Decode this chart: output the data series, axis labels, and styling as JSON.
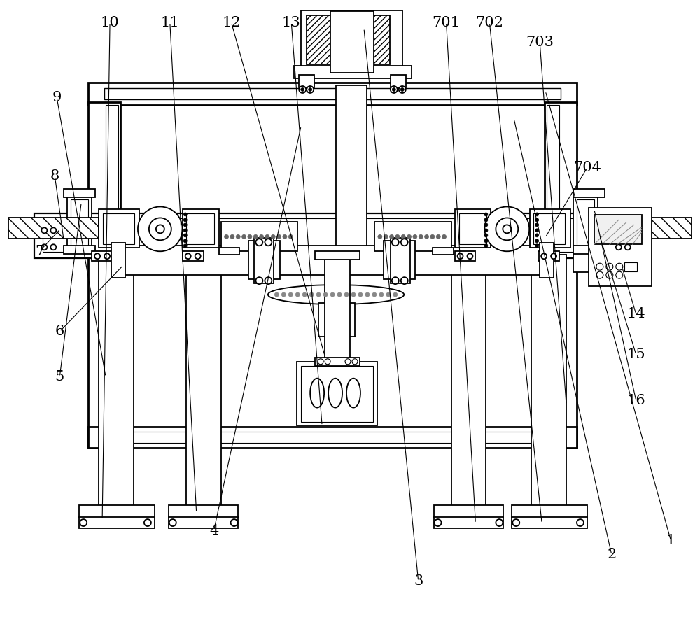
{
  "bg_color": "#ffffff",
  "line_color": "#000000",
  "label_color": "#000000",
  "figsize": [
    10.0,
    8.89
  ],
  "dpi": 100
}
